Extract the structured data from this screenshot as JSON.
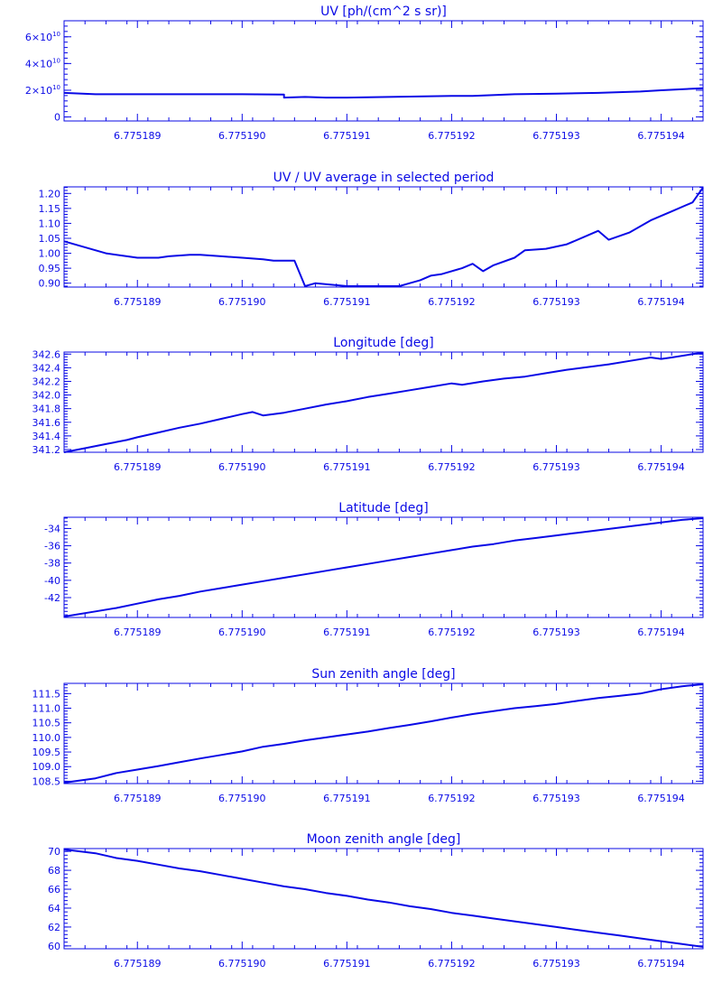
{
  "chart_data": [
    {
      "type": "line",
      "title": "UV [ph/(cm^2 s sr)]",
      "xlim": [
        6.7751883,
        6.7751944
      ],
      "x_ticks": [
        6.775189,
        6.77519,
        6.775191,
        6.775192,
        6.775193,
        6.775194
      ],
      "x_tick_labels": [
        "6.775189",
        "6.775190",
        "6.775191",
        "6.775192",
        "6.775193",
        "6.775194"
      ],
      "ylim": [
        -3000000000.0,
        72000000000.0
      ],
      "y_ticks": [
        0,
        20000000000.0,
        40000000000.0,
        60000000000.0
      ],
      "y_tick_labels": [
        {
          "base": "0",
          "exp": ""
        },
        {
          "base": "2×10",
          "exp": "10"
        },
        {
          "base": "4×10",
          "exp": "10"
        },
        {
          "base": "6×10",
          "exp": "10"
        }
      ],
      "series": [
        {
          "x": [
            6.7751883,
            6.7751886,
            6.775189,
            6.7751895,
            6.77519,
            6.7751904,
            6.7751904,
            6.7751906,
            6.7751908,
            6.775191,
            6.7751914,
            6.775192,
            6.7751922,
            6.7751926,
            6.775193,
            6.7751934,
            6.7751938,
            6.775194,
            6.7751944
          ],
          "y": [
            18000000000.0,
            17000000000.0,
            17000000000.0,
            17000000000.0,
            17000000000.0,
            16800000000.0,
            14500000000.0,
            15000000000.0,
            14500000000.0,
            14500000000.0,
            15000000000.0,
            15800000000.0,
            15800000000.0,
            17000000000.0,
            17500000000.0,
            18000000000.0,
            19000000000.0,
            20000000000.0,
            21500000000.0
          ]
        }
      ]
    },
    {
      "type": "line",
      "title": "UV / UV average in selected period",
      "xlim": [
        6.7751883,
        6.7751944
      ],
      "x_ticks": [
        6.775189,
        6.77519,
        6.775191,
        6.775192,
        6.775193,
        6.775194
      ],
      "x_tick_labels": [
        "6.775189",
        "6.775190",
        "6.775191",
        "6.775192",
        "6.775193",
        "6.775194"
      ],
      "ylim": [
        0.887,
        1.222
      ],
      "y_ticks": [
        0.9,
        0.95,
        1.0,
        1.05,
        1.1,
        1.15,
        1.2
      ],
      "y_tick_labels": [
        {
          "base": "0.90",
          "exp": ""
        },
        {
          "base": "0.95",
          "exp": ""
        },
        {
          "base": "1.00",
          "exp": ""
        },
        {
          "base": "1.05",
          "exp": ""
        },
        {
          "base": "1.10",
          "exp": ""
        },
        {
          "base": "1.15",
          "exp": ""
        },
        {
          "base": "1.20",
          "exp": ""
        }
      ],
      "series": [
        {
          "x": [
            6.7751883,
            6.7751885,
            6.7751887,
            6.7751889,
            6.775189,
            6.7751892,
            6.7751893,
            6.7751895,
            6.7751896,
            6.7751898,
            6.77519,
            6.7751902,
            6.7751903,
            6.7751904,
            6.7751905,
            6.7751906,
            6.7751907,
            6.775191,
            6.7751912,
            6.7751913,
            6.7751915,
            6.7751916,
            6.7751917,
            6.7751918,
            6.7751919,
            6.7751921,
            6.7751922,
            6.7751923,
            6.7751924,
            6.7751926,
            6.7751927,
            6.7751929,
            6.7751931,
            6.7751933,
            6.7751934,
            6.7751935,
            6.7751937,
            6.7751938,
            6.7751939,
            6.7751941,
            6.7751943,
            6.7751944
          ],
          "y": [
            1.04,
            1.02,
            1.0,
            0.99,
            0.985,
            0.985,
            0.99,
            0.995,
            0.995,
            0.99,
            0.985,
            0.98,
            0.975,
            0.975,
            0.975,
            0.89,
            0.9,
            0.89,
            0.89,
            0.89,
            0.89,
            0.9,
            0.91,
            0.925,
            0.93,
            0.95,
            0.965,
            0.94,
            0.96,
            0.985,
            1.01,
            1.015,
            1.03,
            1.06,
            1.075,
            1.045,
            1.07,
            1.09,
            1.11,
            1.14,
            1.17,
            1.22
          ]
        }
      ]
    },
    {
      "type": "line",
      "title": "Longitude [deg]",
      "xlim": [
        6.7751883,
        6.7751944
      ],
      "x_ticks": [
        6.775189,
        6.77519,
        6.775191,
        6.775192,
        6.775193,
        6.775194
      ],
      "x_tick_labels": [
        "6.775189",
        "6.775190",
        "6.775191",
        "6.775192",
        "6.775193",
        "6.775194"
      ],
      "ylim": [
        341.16,
        342.63
      ],
      "y_ticks": [
        341.2,
        341.4,
        341.6,
        341.8,
        342.0,
        342.2,
        342.4,
        342.6
      ],
      "y_tick_labels": [
        {
          "base": "341.2",
          "exp": ""
        },
        {
          "base": "341.4",
          "exp": ""
        },
        {
          "base": "341.6",
          "exp": ""
        },
        {
          "base": "341.8",
          "exp": ""
        },
        {
          "base": "342.0",
          "exp": ""
        },
        {
          "base": "342.2",
          "exp": ""
        },
        {
          "base": "342.4",
          "exp": ""
        },
        {
          "base": "342.6",
          "exp": ""
        }
      ],
      "series": [
        {
          "x": [
            6.7751883,
            6.7751885,
            6.7751887,
            6.7751889,
            6.775189,
            6.7751892,
            6.7751894,
            6.7751896,
            6.7751898,
            6.77519,
            6.7751901,
            6.7751902,
            6.7751904,
            6.7751906,
            6.7751908,
            6.775191,
            6.7751912,
            6.7751914,
            6.7751916,
            6.7751918,
            6.775192,
            6.7751921,
            6.7751923,
            6.7751925,
            6.7751927,
            6.7751929,
            6.7751931,
            6.7751933,
            6.7751935,
            6.7751937,
            6.7751939,
            6.775194,
            6.7751941,
            6.7751943,
            6.7751944
          ],
          "y": [
            341.16,
            341.22,
            341.28,
            341.34,
            341.38,
            341.45,
            341.52,
            341.58,
            341.65,
            341.72,
            341.75,
            341.7,
            341.74,
            341.8,
            341.86,
            341.91,
            341.97,
            342.02,
            342.07,
            342.12,
            342.17,
            342.15,
            342.2,
            342.24,
            342.27,
            342.32,
            342.37,
            342.41,
            342.45,
            342.5,
            342.55,
            342.53,
            342.55,
            342.6,
            342.62
          ]
        }
      ]
    },
    {
      "type": "line",
      "title": "Latitude [deg]",
      "xlim": [
        6.7751883,
        6.7751944
      ],
      "x_ticks": [
        6.775189,
        6.77519,
        6.775191,
        6.775192,
        6.775193,
        6.775194
      ],
      "x_tick_labels": [
        "6.775189",
        "6.775190",
        "6.775191",
        "6.775192",
        "6.775193",
        "6.775194"
      ],
      "ylim": [
        -44.3,
        -32.7
      ],
      "y_ticks": [
        -42,
        -40,
        -38,
        -36,
        -34
      ],
      "y_tick_labels": [
        {
          "base": "-42",
          "exp": ""
        },
        {
          "base": "-40",
          "exp": ""
        },
        {
          "base": "-38",
          "exp": ""
        },
        {
          "base": "-36",
          "exp": ""
        },
        {
          "base": "-34",
          "exp": ""
        }
      ],
      "series": [
        {
          "x": [
            6.7751883,
            6.7751886,
            6.7751888,
            6.775189,
            6.7751892,
            6.7751894,
            6.7751896,
            6.7751898,
            6.77519,
            6.7751902,
            6.7751904,
            6.7751906,
            6.7751908,
            6.775191,
            6.7751912,
            6.7751914,
            6.7751916,
            6.7751918,
            6.775192,
            6.7751922,
            6.7751924,
            6.7751926,
            6.7751928,
            6.775193,
            6.7751932,
            6.7751934,
            6.7751936,
            6.7751938,
            6.775194,
            6.7751942,
            6.7751944
          ],
          "y": [
            -44.2,
            -43.6,
            -43.2,
            -42.7,
            -42.2,
            -41.8,
            -41.3,
            -40.9,
            -40.5,
            -40.1,
            -39.7,
            -39.3,
            -38.9,
            -38.5,
            -38.1,
            -37.7,
            -37.3,
            -36.9,
            -36.5,
            -36.1,
            -35.8,
            -35.4,
            -35.1,
            -34.8,
            -34.5,
            -34.2,
            -33.9,
            -33.6,
            -33.3,
            -33.0,
            -32.8
          ]
        }
      ]
    },
    {
      "type": "line",
      "title": "Sun zenith angle [deg]",
      "xlim": [
        6.7751883,
        6.7751944
      ],
      "x_ticks": [
        6.775189,
        6.77519,
        6.775191,
        6.775192,
        6.775193,
        6.775194
      ],
      "x_tick_labels": [
        "6.775189",
        "6.775190",
        "6.775191",
        "6.775192",
        "6.775193",
        "6.775194"
      ],
      "ylim": [
        108.42,
        111.85
      ],
      "y_ticks": [
        108.5,
        109.0,
        109.5,
        110.0,
        110.5,
        111.0,
        111.5
      ],
      "y_tick_labels": [
        {
          "base": "108.5",
          "exp": ""
        },
        {
          "base": "109.0",
          "exp": ""
        },
        {
          "base": "109.5",
          "exp": ""
        },
        {
          "base": "110.0",
          "exp": ""
        },
        {
          "base": "110.5",
          "exp": ""
        },
        {
          "base": "111.0",
          "exp": ""
        },
        {
          "base": "111.5",
          "exp": ""
        }
      ],
      "series": [
        {
          "x": [
            6.7751883,
            6.7751886,
            6.7751888,
            6.775189,
            6.7751892,
            6.7751894,
            6.7751896,
            6.7751898,
            6.77519,
            6.7751902,
            6.7751904,
            6.7751906,
            6.7751908,
            6.775191,
            6.7751912,
            6.7751914,
            6.7751916,
            6.7751918,
            6.775192,
            6.7751922,
            6.7751924,
            6.7751926,
            6.7751928,
            6.775193,
            6.7751932,
            6.7751934,
            6.7751936,
            6.7751938,
            6.775194,
            6.7751942,
            6.7751944
          ],
          "y": [
            108.45,
            108.6,
            108.78,
            108.9,
            109.02,
            109.15,
            109.28,
            109.4,
            109.52,
            109.68,
            109.78,
            109.9,
            110.0,
            110.1,
            110.2,
            110.32,
            110.43,
            110.55,
            110.68,
            110.8,
            110.9,
            111.0,
            111.07,
            111.15,
            111.25,
            111.35,
            111.42,
            111.5,
            111.65,
            111.75,
            111.82
          ]
        }
      ]
    },
    {
      "type": "line",
      "title": "Moon zenith angle [deg]",
      "xlim": [
        6.7751883,
        6.7751944
      ],
      "x_ticks": [
        6.775189,
        6.77519,
        6.775191,
        6.775192,
        6.775193,
        6.775194
      ],
      "x_tick_labels": [
        "6.775189",
        "6.775190",
        "6.775191",
        "6.775192",
        "6.775193",
        "6.775194"
      ],
      "ylim": [
        59.7,
        70.3
      ],
      "y_ticks": [
        60,
        62,
        64,
        66,
        68,
        70
      ],
      "y_tick_labels": [
        {
          "base": "60",
          "exp": ""
        },
        {
          "base": "62",
          "exp": ""
        },
        {
          "base": "64",
          "exp": ""
        },
        {
          "base": "66",
          "exp": ""
        },
        {
          "base": "68",
          "exp": ""
        },
        {
          "base": "70",
          "exp": ""
        }
      ],
      "series": [
        {
          "x": [
            6.7751883,
            6.7751886,
            6.7751888,
            6.775189,
            6.7751892,
            6.7751894,
            6.7751896,
            6.7751898,
            6.77519,
            6.7751902,
            6.7751904,
            6.7751906,
            6.7751908,
            6.775191,
            6.7751912,
            6.7751914,
            6.7751916,
            6.7751918,
            6.775192,
            6.7751922,
            6.7751924,
            6.7751926,
            6.7751928,
            6.775193,
            6.7751932,
            6.7751934,
            6.7751936,
            6.7751938,
            6.775194,
            6.7751942,
            6.7751944
          ],
          "y": [
            70.2,
            69.8,
            69.3,
            69.0,
            68.6,
            68.2,
            67.9,
            67.5,
            67.1,
            66.7,
            66.3,
            66.0,
            65.6,
            65.3,
            64.9,
            64.6,
            64.2,
            63.9,
            63.5,
            63.2,
            62.9,
            62.6,
            62.3,
            62.0,
            61.7,
            61.4,
            61.1,
            60.8,
            60.5,
            60.2,
            59.9
          ]
        }
      ]
    }
  ]
}
